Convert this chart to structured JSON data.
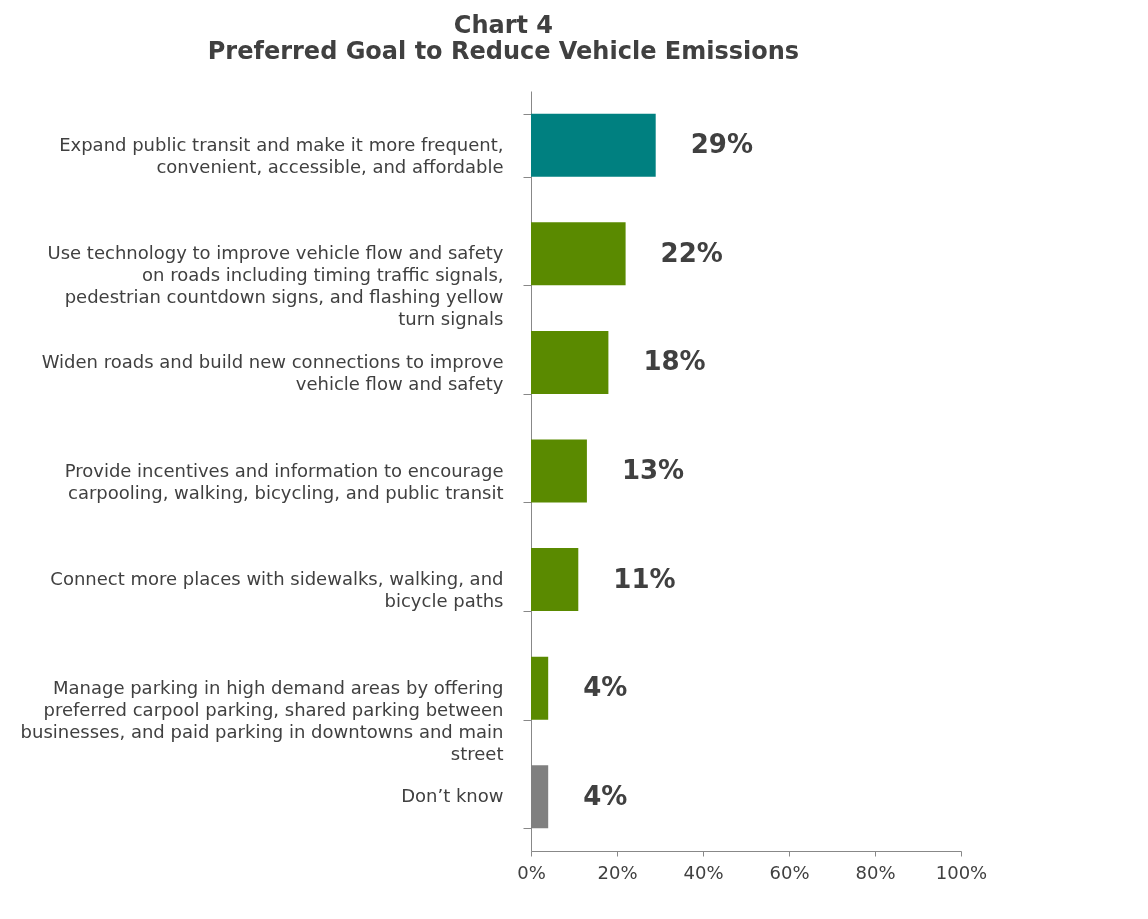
{
  "chart_data": {
    "type": "bar",
    "orientation": "horizontal",
    "title": "Chart 4",
    "subtitle": "Preferred Goal to Reduce Vehicle Emissions",
    "categories": [
      "Expand public transit and make it more frequent, convenient, accessible, and affordable",
      "Use technology to improve vehicle flow and safety on roads including timing traffic signals, pedestrian countdown signs, and flashing yellow turn signals",
      "Widen roads and build new connections to improve vehicle flow and safety",
      "Provide incentives and information to encourage carpooling, walking, bicycling, and public transit",
      "Connect more places with sidewalks, walking, and bicycle paths",
      "Manage parking in high demand areas by offering preferred carpool parking, shared parking between businesses, and paid parking in downtowns and main street",
      "Don’t know"
    ],
    "values": [
      29,
      22,
      18,
      13,
      11,
      4,
      4
    ],
    "colors": [
      "#008080",
      "#5a8a00",
      "#5a8a00",
      "#5a8a00",
      "#5a8a00",
      "#5a8a00",
      "#808080"
    ],
    "value_labels": [
      "29%",
      "22%",
      "18%",
      "13%",
      "11%",
      "4%",
      "4%"
    ],
    "xlim": [
      0,
      100
    ],
    "xticks": [
      {
        "value": 0,
        "label": "0%"
      },
      {
        "value": 20,
        "label": "20%"
      },
      {
        "value": 40,
        "label": "40%"
      },
      {
        "value": 60,
        "label": "60%"
      },
      {
        "value": 80,
        "label": "80%"
      },
      {
        "value": 100,
        "label": "100%"
      }
    ],
    "grid": false
  }
}
